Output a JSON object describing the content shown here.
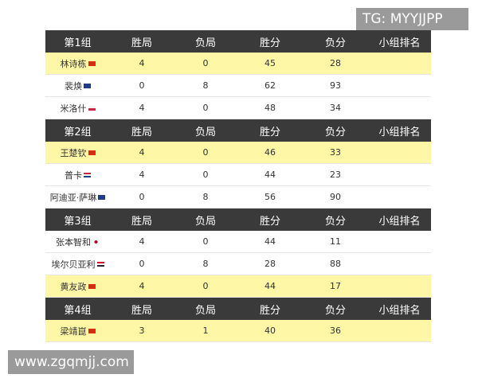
{
  "watermarks": {
    "top": "TG: MYYJJPP",
    "bottom": "www.zgqmjj.com"
  },
  "groups": [
    {
      "header": [
        "第1组",
        "胜局",
        "负局",
        "胜分",
        "负分",
        "小组排名"
      ],
      "rows": [
        {
          "name": "林诗栋",
          "cells": [
            4,
            0,
            45,
            28
          ],
          "highlight": true
        },
        {
          "name": "裴焕",
          "cells": [
            0,
            8,
            62,
            93
          ],
          "highlight": false
        },
        {
          "name": "米洛什",
          "cells": [
            4,
            0,
            48,
            34
          ],
          "highlight": false
        }
      ]
    },
    {
      "header": [
        "第2组",
        "胜局",
        "负局",
        "胜分",
        "负分",
        "小组排名"
      ],
      "rows": [
        {
          "name": "王楚钦",
          "cells": [
            4,
            0,
            46,
            33
          ],
          "highlight": true
        },
        {
          "name": "普卡",
          "cells": [
            4,
            0,
            44,
            23
          ],
          "highlight": false
        },
        {
          "name": "阿迪亚·萨琳",
          "cells": [
            0,
            8,
            56,
            90
          ],
          "highlight": false
        }
      ]
    },
    {
      "header": [
        "第3组",
        "胜局",
        "负局",
        "胜分",
        "负分",
        "小组排名"
      ],
      "rows": [
        {
          "name": "张本智和",
          "cells": [
            4,
            0,
            44,
            11
          ],
          "highlight": false
        },
        {
          "name": "埃尔贝亚利",
          "cells": [
            0,
            8,
            28,
            88
          ],
          "highlight": false
        },
        {
          "name": "黄友政",
          "cells": [
            4,
            0,
            44,
            17
          ],
          "highlight": true
        }
      ]
    },
    {
      "header": [
        "第4组",
        "胜局",
        "负局",
        "胜分",
        "负分",
        "小组排名"
      ],
      "rows": [
        {
          "name": "梁靖崑",
          "cells": [
            3,
            1,
            40,
            36
          ],
          "highlight": true
        }
      ]
    }
  ]
}
